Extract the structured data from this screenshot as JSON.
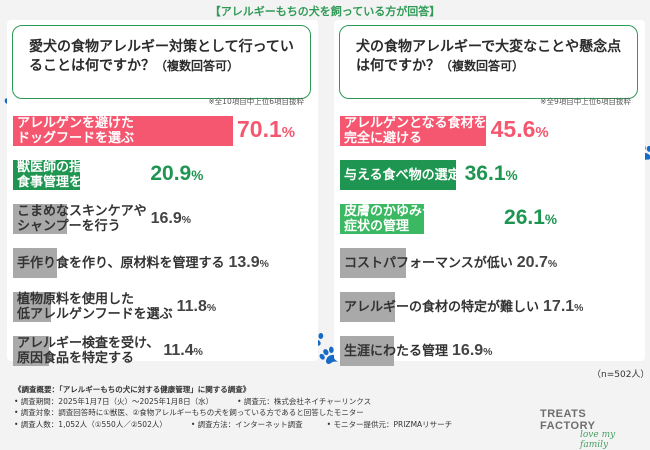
{
  "banner": "【アレルギーもちの犬を飼っている方が回答】",
  "colors": {
    "pink": "#f4576f",
    "green": "#1e9551",
    "lightgreen": "#3ab862",
    "gray": "#a9a9a9",
    "accent": "#2f9a55"
  },
  "chart_data": [
    {
      "type": "bar",
      "title": "愛犬の食物アレルギー対策として行っていることは何ですか？",
      "subtitle": "（複数回答可）",
      "note": "※全10項目中上位6項目抜粋",
      "categories": [
        "アレルゲンを避けた\nドッグフードを選ぶ",
        "獣医師の指導のもとで\n食事管理を行う",
        "こまめなスキンケアや\nシャンプーを行う",
        "手作り食を作り、原材料を管理する",
        "植物原料を使用した\n低アレルゲンフードを選ぶ",
        "アレルギー検査を受け、\n原因食品を特定する"
      ],
      "values": [
        70.1,
        20.9,
        16.9,
        13.9,
        11.8,
        11.4
      ],
      "value_labels": [
        "70.1",
        "20.9",
        "16.9",
        "13.9",
        "11.8",
        "11.4"
      ],
      "unit": "%",
      "xlim": [
        0,
        100
      ]
    },
    {
      "type": "bar",
      "title": "犬の食物アレルギーで大変なことや懸念点は何ですか？",
      "subtitle": "（複数回答可）",
      "note": "※全9項目中上位6項目抜粋",
      "categories": [
        "アレルゲンとなる食材を\n完全に避ける",
        "与える食べ物の選定",
        "皮膚のかゆみや赤みなどの\n症状の管理",
        "コストパフォーマンスが低い",
        "アレルギーの食材の特定が難しい",
        "生涯にわたる管理"
      ],
      "values": [
        45.6,
        36.1,
        26.1,
        20.7,
        17.1,
        16.9
      ],
      "value_labels": [
        "45.6",
        "36.1",
        "26.1",
        "20.7",
        "17.1",
        "16.9"
      ],
      "unit": "%",
      "xlim": [
        0,
        100
      ]
    }
  ],
  "sample_note": "（n=502人）",
  "footer": {
    "title": "《調査概要：「アレルギーもちの犬に対する健康管理」に関する調査》",
    "period": "• 調査期間：2025年1月7日（火）〜2025年1月8日（水）",
    "provider": "• 調査元：株式会社ネイチャーリンクス",
    "target": "• 調査対象：調査回答時に①獣医、②食物アレルギーもちの犬を飼っている方であると回答したモニター",
    "count": "• 調査人数：1,052人（①550人／②502人）",
    "method": "• 調査方法：インターネット調査",
    "monitor": "• モニター提供元：PRIZMAリサーチ"
  },
  "logo": {
    "main": "TREATS FACTORY",
    "sub": "love my family"
  }
}
